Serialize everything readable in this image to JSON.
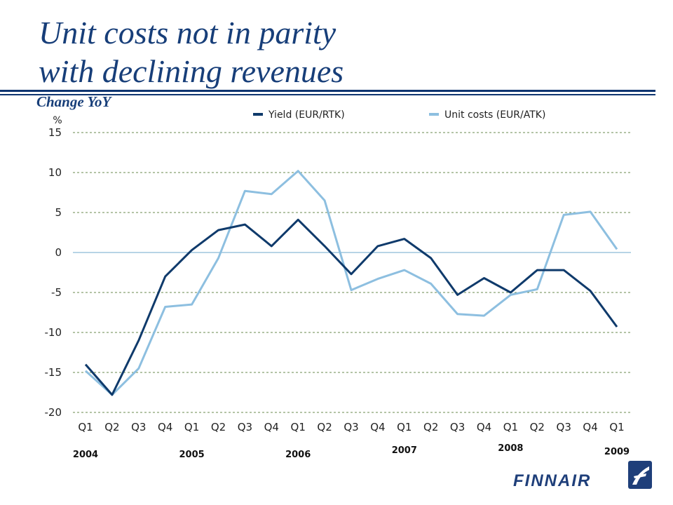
{
  "header": {
    "title_line1": "Unit costs not in parity",
    "title_line2": "with declining revenues",
    "subtitle": "Change YoY"
  },
  "colors": {
    "title": "#173e79",
    "yield": "#0f3a6b",
    "unit_costs": "#8dbfe0",
    "grid": "#6a8a4e",
    "zero_line": "#9fc6de"
  },
  "chart_data": {
    "type": "line",
    "ylabel": "%",
    "ylim": [
      -20,
      15
    ],
    "yticks": [
      15,
      10,
      5,
      0,
      -5,
      -10,
      -15,
      -20
    ],
    "grid": "horizontal dashed",
    "legend_position": "top",
    "categories": [
      "Q1",
      "Q2",
      "Q3",
      "Q4",
      "Q1",
      "Q2",
      "Q3",
      "Q4",
      "Q1",
      "Q2",
      "Q3",
      "Q4",
      "Q1",
      "Q2",
      "Q3",
      "Q4",
      "Q1",
      "Q2",
      "Q3",
      "Q4",
      "Q1"
    ],
    "year_labels": [
      {
        "label": "2004",
        "category_index": 0
      },
      {
        "label": "2005",
        "category_index": 4
      },
      {
        "label": "2006",
        "category_index": 8
      },
      {
        "label": "2007",
        "category_index": 12
      },
      {
        "label": "2008",
        "category_index": 16
      },
      {
        "label": "2009",
        "category_index": 20
      }
    ],
    "series": [
      {
        "name": "Yield (EUR/RTK)",
        "color": "#0f3a6b",
        "values": [
          -14.0,
          -17.8,
          -11.0,
          -3.0,
          0.3,
          2.8,
          3.5,
          0.8,
          4.1,
          0.8,
          -2.7,
          0.8,
          1.7,
          -0.7,
          -5.3,
          -3.2,
          -5.0,
          -2.2,
          -2.2,
          -4.8,
          -9.3
        ]
      },
      {
        "name": "Unit costs (EUR/ATK)",
        "color": "#8dbfe0",
        "values": [
          -14.8,
          -17.8,
          -14.5,
          -6.8,
          -6.5,
          -0.7,
          7.7,
          7.3,
          10.2,
          6.5,
          -4.7,
          -3.3,
          -2.2,
          -3.9,
          -7.7,
          -7.9,
          -5.3,
          -4.6,
          4.7,
          5.1,
          0.4
        ]
      }
    ]
  },
  "logo": {
    "wordmark": "FINNAIR"
  }
}
